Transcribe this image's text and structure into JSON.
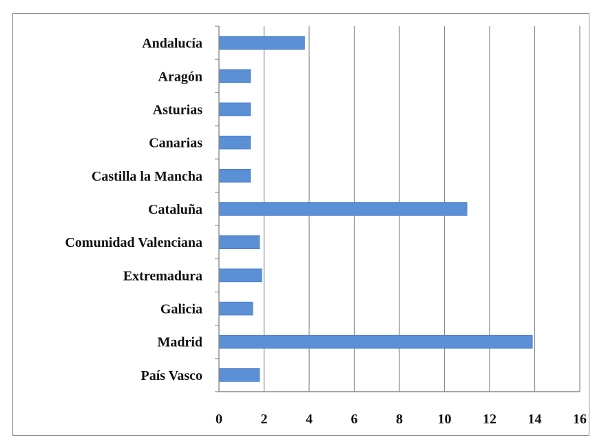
{
  "chart_data": {
    "type": "bar",
    "orientation": "horizontal",
    "title": "",
    "xlabel": "",
    "ylabel": "",
    "categories": [
      "Andalucía",
      "Aragón",
      "Asturias",
      "Canarias",
      "Castilla la Mancha",
      "Cataluña",
      "Comunidad Valenciana",
      "Extremadura",
      "Galicia",
      "Madrid",
      "País Vasco"
    ],
    "values": [
      3.8,
      1.4,
      1.4,
      1.4,
      1.4,
      11.0,
      1.8,
      1.9,
      1.5,
      13.9,
      1.8
    ],
    "xlim": [
      0,
      16
    ],
    "xticks": [
      "0",
      "2",
      "4",
      "6",
      "8",
      "10",
      "12",
      "14",
      "16"
    ],
    "grid": true,
    "legend": "none",
    "colors": {
      "bar": "#5b8fd6",
      "bar_edge": "#3f75c2",
      "grid": "#8a8a8a",
      "axis": "#8a8a8a"
    }
  }
}
